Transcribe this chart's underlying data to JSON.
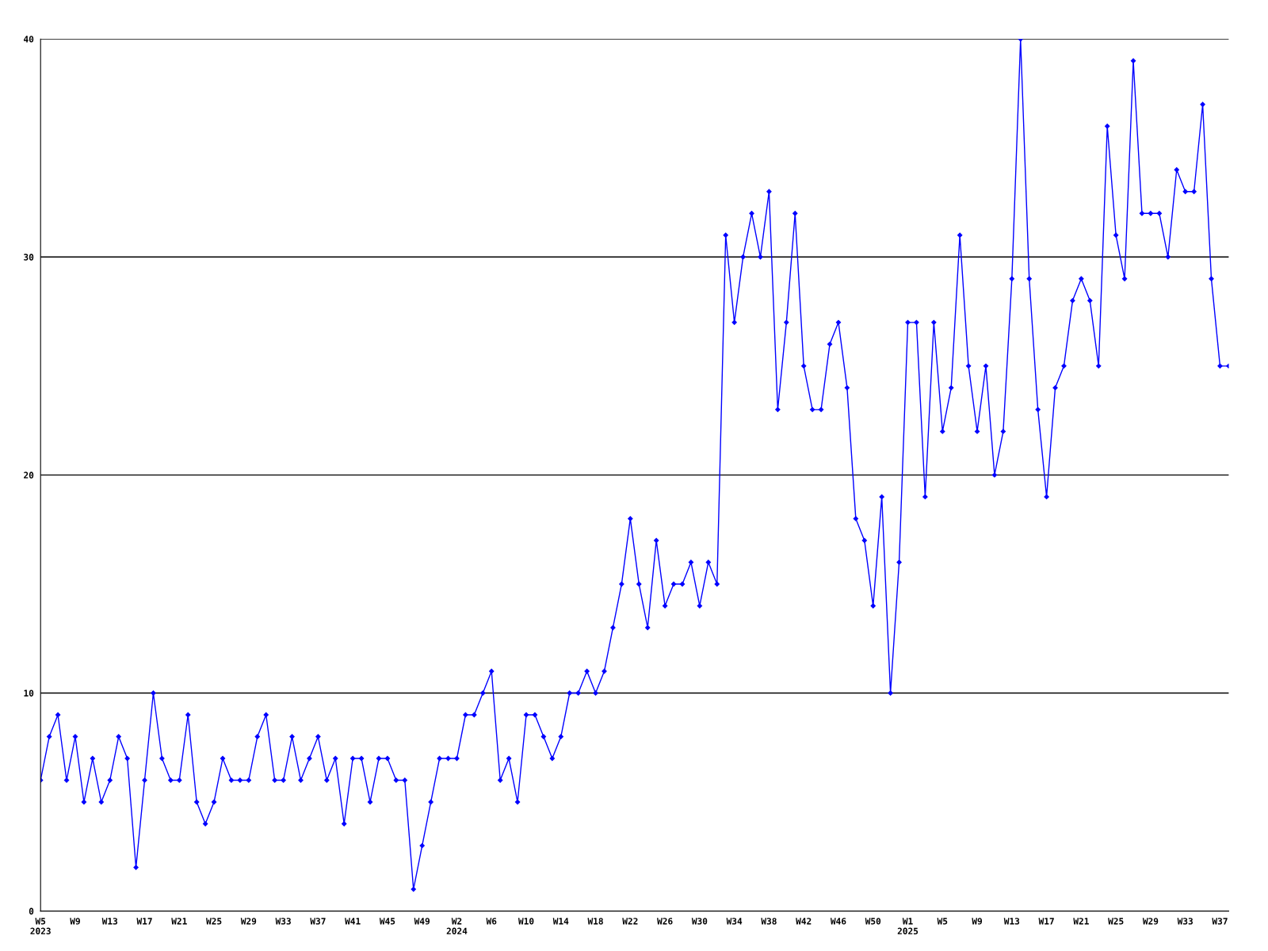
{
  "chart_data": {
    "type": "line",
    "categories": [
      "W5\n2023",
      null,
      null,
      null,
      "W9",
      null,
      null,
      null,
      "W13",
      null,
      null,
      null,
      "W17",
      null,
      null,
      null,
      "W21",
      null,
      null,
      null,
      "W25",
      null,
      null,
      null,
      "W29",
      null,
      null,
      null,
      "W33",
      null,
      null,
      null,
      "W37",
      null,
      null,
      null,
      "W41",
      null,
      null,
      null,
      "W45",
      null,
      null,
      null,
      "W49",
      null,
      null,
      null,
      "W2\n2024",
      null,
      null,
      null,
      "W6",
      null,
      null,
      null,
      "W10",
      null,
      null,
      null,
      "W14",
      null,
      null,
      null,
      "W18",
      null,
      null,
      null,
      "W22",
      null,
      null,
      null,
      "W26",
      null,
      null,
      null,
      "W30",
      null,
      null,
      null,
      "W34",
      null,
      null,
      null,
      "W38",
      null,
      null,
      null,
      "W42",
      null,
      null,
      null,
      "W46",
      null,
      null,
      null,
      "W50",
      null,
      null,
      null,
      "W1\n2025",
      null,
      null,
      null,
      "W5",
      null,
      null,
      null,
      "W9",
      null,
      null,
      null,
      "W13",
      null,
      null,
      null,
      "W17",
      null,
      null,
      null,
      "W21",
      null,
      null,
      null,
      "W25",
      null,
      null,
      null,
      "W29",
      null,
      null,
      null,
      "W33",
      null,
      null,
      null,
      "W37",
      null
    ],
    "series": [
      {
        "color": "#0000ff",
        "values": [
          6,
          8,
          9,
          6,
          8,
          5,
          7,
          5,
          6,
          8,
          7,
          2,
          6,
          10,
          7,
          6,
          6,
          9,
          5,
          4,
          5,
          7,
          6,
          6,
          6,
          8,
          9,
          6,
          6,
          8,
          6,
          7,
          8,
          6,
          7,
          4,
          7,
          7,
          5,
          7,
          7,
          6,
          6,
          1,
          3,
          5,
          7,
          7,
          7,
          9,
          9,
          10,
          11,
          6,
          7,
          5,
          9,
          9,
          8,
          7,
          8,
          10,
          10,
          11,
          10,
          11,
          13,
          15,
          18,
          15,
          13,
          17,
          14,
          15,
          15,
          16,
          14,
          16,
          15,
          31,
          27,
          30,
          32,
          30,
          33,
          23,
          27,
          32,
          25,
          23,
          23,
          26,
          27,
          24,
          18,
          17,
          14,
          19,
          10,
          16,
          27,
          27,
          19,
          27,
          22,
          24,
          31,
          25,
          22,
          25,
          20,
          22,
          29,
          40,
          29,
          23,
          19,
          24,
          25,
          28,
          29,
          28,
          25,
          36,
          31,
          29,
          39,
          32,
          32,
          32,
          30,
          34,
          33,
          33,
          37,
          29,
          25,
          25
        ]
      }
    ],
    "ylim": [
      0,
      40
    ],
    "yticks": [
      0,
      10,
      20,
      30,
      40
    ],
    "grid": "y",
    "marker": "diamond",
    "line_style": "solid"
  }
}
